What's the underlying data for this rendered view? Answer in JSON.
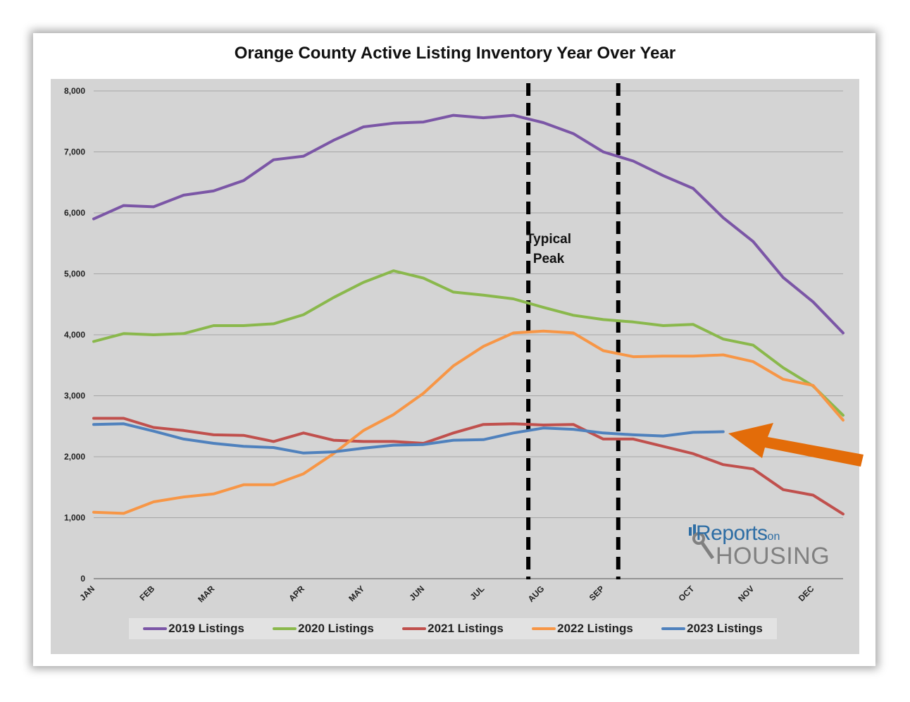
{
  "chart_data": {
    "type": "line",
    "title": "Orange County Active Listing Inventory Year Over Year",
    "x_labels": [
      "JAN",
      "FEB",
      "MAR",
      "APR",
      "MAY",
      "JUN",
      "JUL",
      "AUG",
      "SEP",
      "OCT",
      "NOV",
      "DEC"
    ],
    "x_label_weeks": [
      0,
      2,
      4,
      7,
      9,
      11,
      13,
      15,
      17,
      20,
      22,
      24
    ],
    "weeks": 26,
    "ylim": [
      0,
      8000
    ],
    "y_ticks": [
      0,
      1000,
      2000,
      3000,
      4000,
      5000,
      6000,
      7000,
      8000
    ],
    "y_tick_labels": [
      "0",
      "1,000",
      "2,000",
      "3,000",
      "4,000",
      "5,000",
      "6,000",
      "7,000",
      "8,000"
    ],
    "grid": true,
    "legend_position": "bottom",
    "series": [
      {
        "name": "2019 Listings",
        "color": "#7b56a6",
        "values": [
          5900,
          6120,
          6100,
          6290,
          6360,
          6530,
          6870,
          6930,
          7190,
          7410,
          7470,
          7490,
          7600,
          7560,
          7600,
          7480,
          7300,
          7000,
          6850,
          6610,
          6400,
          5920,
          5530,
          4940,
          4540,
          4030
        ]
      },
      {
        "name": "2020 Listings",
        "color": "#8ab84c",
        "values": [
          3890,
          4020,
          4000,
          4020,
          4150,
          4150,
          4180,
          4330,
          4610,
          4860,
          5050,
          4930,
          4700,
          4650,
          4590,
          4450,
          4320,
          4250,
          4210,
          4150,
          4170,
          3930,
          3830,
          3460,
          3160,
          2680
        ]
      },
      {
        "name": "2021 Listings",
        "color": "#c0504d",
        "values": [
          2630,
          2630,
          2480,
          2430,
          2360,
          2350,
          2250,
          2390,
          2270,
          2250,
          2250,
          2220,
          2390,
          2530,
          2540,
          2520,
          2530,
          2290,
          2290,
          2170,
          2050,
          1870,
          1800,
          1460,
          1370,
          1060
        ]
      },
      {
        "name": "2022 Listings",
        "color": "#f79646",
        "values": [
          1090,
          1070,
          1260,
          1340,
          1390,
          1540,
          1540,
          1720,
          2050,
          2430,
          2690,
          3040,
          3490,
          3810,
          4030,
          4060,
          4030,
          3740,
          3640,
          3650,
          3650,
          3670,
          3560,
          3270,
          3170,
          2600
        ]
      },
      {
        "name": "2023 Listings",
        "color": "#4f81bd",
        "values": [
          2530,
          2540,
          2420,
          2290,
          2220,
          2170,
          2150,
          2060,
          2080,
          2140,
          2190,
          2200,
          2270,
          2280,
          2390,
          2470,
          2450,
          2390,
          2360,
          2340,
          2400,
          2410,
          null,
          null,
          null,
          null
        ]
      }
    ],
    "annotations": {
      "peak_label_line1": "Typical",
      "peak_label_line2": "Peak",
      "peak_start_week": 14.5,
      "peak_end_week": 17.5
    }
  },
  "logo": {
    "line1": "Reports",
    "line1_small": "on",
    "line2": "HOUSING"
  }
}
